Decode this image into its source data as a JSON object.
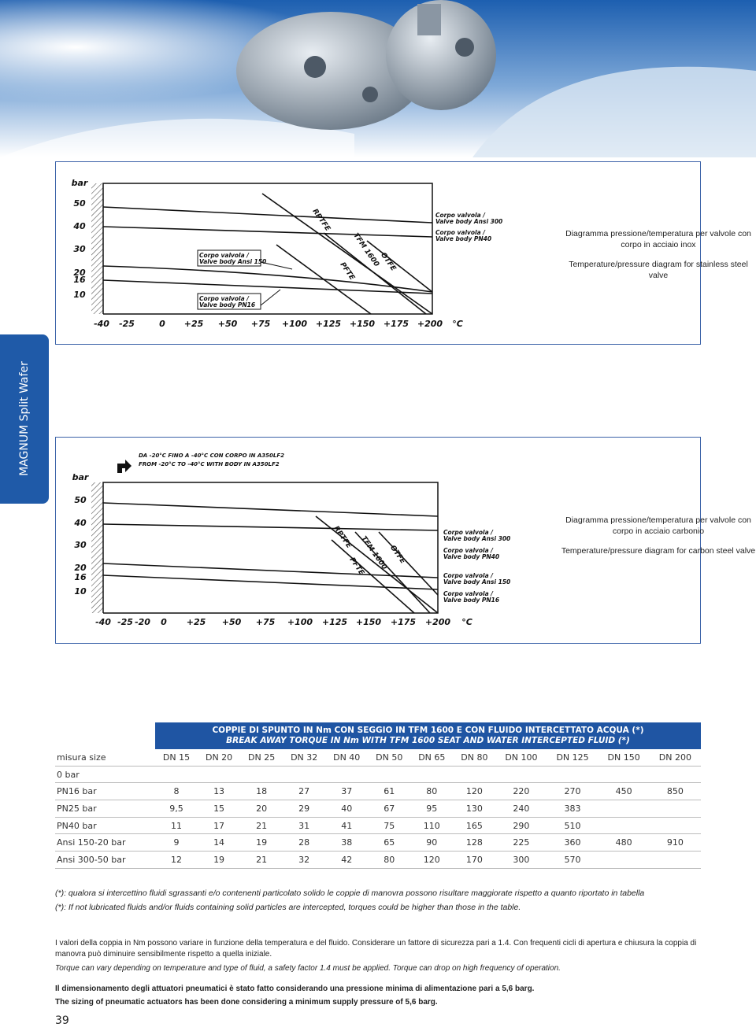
{
  "side_tab": "MAGNUM Split Wafer",
  "diagrams": [
    {
      "unit": "bar",
      "y_labels": [
        "50",
        "40",
        "30",
        "20",
        "16",
        "10"
      ],
      "x_labels": [
        "-40",
        "-25",
        "0",
        "+25",
        "+50",
        "+75",
        "+100",
        "+125",
        "+150",
        "+175",
        "+200",
        "°C"
      ],
      "curves": [
        "RPTFE",
        "PFTE",
        "TFM 1600",
        "OTFE"
      ],
      "body_labels": [
        [
          "Corpo valvola /",
          "Valve body Ansi 300"
        ],
        [
          "Corpo valvola /",
          "Valve body PN40"
        ],
        [
          "Corpo valvola /",
          "Valve body Ansi 150"
        ],
        [
          "Corpo valvola /",
          "Valve body PN16"
        ]
      ],
      "caption_it": "Diagramma pressione/temperatura per valvole con corpo in acciaio inox",
      "caption_en": "Temperature/pressure diagram for stainless steel valve"
    },
    {
      "unit": "bar",
      "note": [
        "DA -20°C FINO A -40°C CON CORPO IN A350LF2",
        "FROM -20°C TO -40°C WITH BODY IN A350LF2"
      ],
      "y_labels": [
        "50",
        "40",
        "30",
        "20",
        "16",
        "10"
      ],
      "x_labels": [
        "-40",
        "-25",
        "-20",
        "0",
        "+25",
        "+50",
        "+75",
        "+100",
        "+125",
        "+150",
        "+175",
        "+200",
        "°C"
      ],
      "curves": [
        "RPTFE",
        "PFTE",
        "TFM 1600",
        "OTFE"
      ],
      "body_labels": [
        [
          "Corpo valvola /",
          "Valve body Ansi 300"
        ],
        [
          "Corpo valvola /",
          "Valve body PN40"
        ],
        [
          "Corpo valvola /",
          "Valve body Ansi 150"
        ],
        [
          "Corpo valvola /",
          "Valve body PN16"
        ]
      ],
      "caption_it": "Diagramma pressione/temperatura per valvole con corpo in acciaio carbonio",
      "caption_en": "Temperature/pressure diagram for carbon steel valve"
    }
  ],
  "table": {
    "title": "COPPIE DI SPUNTO IN Nm CON SEGGIO IN TFM 1600 E CON FLUIDO INTERCETTATO ACQUA (*)",
    "subtitle": "BREAK AWAY TORQUE IN Nm WITH TFM 1600 SEAT AND WATER INTERCEPTED FLUID (*)",
    "header": [
      "misura size",
      "DN 15",
      "DN 20",
      "DN 25",
      "DN 32",
      "DN 40",
      "DN 50",
      "DN 65",
      "DN 80",
      "DN 100",
      "DN 125",
      "DN 150",
      "DN 200"
    ],
    "rows": [
      [
        "0 bar"
      ],
      [
        "PN16 bar",
        "8",
        "13",
        "18",
        "27",
        "37",
        "61",
        "80",
        "120",
        "220",
        "270",
        "450",
        "850"
      ],
      [
        "PN25 bar",
        "9,5",
        "15",
        "20",
        "29",
        "40",
        "67",
        "95",
        "130",
        "240",
        "383"
      ],
      [
        "PN40 bar",
        "11",
        "17",
        "21",
        "31",
        "41",
        "75",
        "110",
        "165",
        "290",
        "510"
      ],
      [
        "Ansi 150-20 bar",
        "9",
        "14",
        "19",
        "28",
        "38",
        "65",
        "90",
        "128",
        "225",
        "360",
        "480",
        "910"
      ],
      [
        "Ansi 300-50 bar",
        "12",
        "19",
        "21",
        "32",
        "42",
        "80",
        "120",
        "170",
        "300",
        "570"
      ]
    ]
  },
  "notes": [
    "(*): qualora si intercettino fluidi sgrassanti e/o contenenti particolato solido le coppie di manovra possono risultare maggiorate rispetto a quanto riportato in tabella",
    "(*): If not lubricated fluids and/or fluids containing solid particles are intercepted, torques could be higher than those in the table."
  ],
  "paragraphs": [
    "I valori della coppia in Nm possono variare in funzione della temperatura e del fluido. Considerare un fattore di sicurezza pari a 1.4. Con frequenti cicli di apertura e chiusura la coppia di manovra può diminuire sensibilmente rispetto a quella iniziale.",
    "Torque can vary depending on temperature and type of fluid, a safety factor 1.4 must be applied. Torque can drop on high frequency of operation."
  ],
  "bold_notes": [
    "Il dimensionamento degli attuatori pneumatici è stato fatto considerando una pressione minima di alimentazione pari a 5,6 barg.",
    "The sizing of pneumatic actuators has been done considering a minimum supply pressure of 5,6 barg."
  ],
  "page_number": "39"
}
